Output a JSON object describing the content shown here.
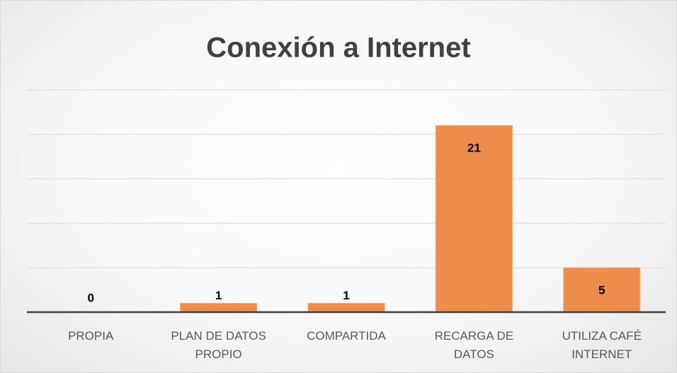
{
  "chart_data": {
    "type": "bar",
    "title": "Conexión a Internet",
    "categories": [
      "PROPIA",
      "PLAN DE DATOS PROPIO",
      "COMPARTIDA",
      "RECARGA DE DATOS",
      "UTILIZA CAFÉ INTERNET"
    ],
    "values": [
      0,
      1,
      1,
      21,
      5
    ],
    "color": "#ee8c4c",
    "ylim": [
      0,
      25
    ],
    "yticks": [
      0,
      5,
      10,
      15,
      20,
      25
    ],
    "grid": true
  }
}
